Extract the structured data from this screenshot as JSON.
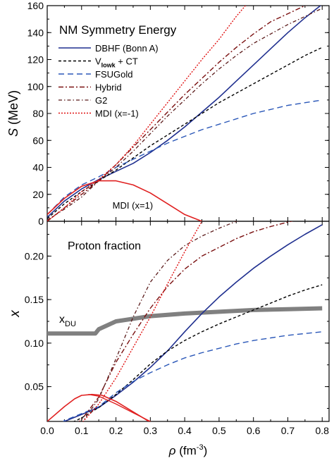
{
  "chart_data": [
    {
      "type": "line",
      "title": "NM Symmetry Energy",
      "ylabel_var": "S",
      "ylabel_unit": "(MeV)",
      "xlim": [
        0.0,
        0.82
      ],
      "ylim": [
        0,
        160
      ],
      "xticks": [
        "0.0",
        "0.1",
        "0.2",
        "0.3",
        "0.4",
        "0.5",
        "0.6",
        "0.7",
        "0.8"
      ],
      "xtick_values": [
        0.0,
        0.1,
        0.2,
        0.3,
        0.4,
        0.5,
        0.6,
        0.7,
        0.8
      ],
      "yticks": [
        "0",
        "20",
        "40",
        "60",
        "80",
        "100",
        "120",
        "140",
        "160"
      ],
      "ytick_values": [
        0,
        20,
        40,
        60,
        80,
        100,
        120,
        140,
        160
      ],
      "legend_position": "top-left",
      "annotations": [
        {
          "text": "MDI (x=1)",
          "x": 0.19,
          "y": 12
        }
      ],
      "series": [
        {
          "name": "DBHF (Bonn A)",
          "color": "#1f2f8f",
          "dash": "solid",
          "width": 1.6,
          "x": [
            0.0,
            0.05,
            0.1,
            0.15,
            0.2,
            0.25,
            0.3,
            0.35,
            0.4,
            0.45,
            0.5,
            0.55,
            0.6,
            0.65,
            0.7,
            0.75,
            0.8
          ],
          "y": [
            3,
            15,
            24,
            31,
            37,
            43,
            51,
            60,
            70,
            81,
            92,
            104,
            116,
            128,
            140,
            151,
            161
          ]
        },
        {
          "name": "Vlowk + CT",
          "name_main": "V",
          "name_sub": "lowk",
          "name_rest": " + CT",
          "color": "#000000",
          "dash": "4,3",
          "width": 1.4,
          "x": [
            0.0,
            0.05,
            0.1,
            0.15,
            0.2,
            0.25,
            0.3,
            0.35,
            0.4,
            0.45,
            0.5,
            0.55,
            0.6,
            0.65,
            0.7,
            0.75,
            0.8
          ],
          "y": [
            2,
            13,
            22,
            30,
            38,
            47,
            56,
            64,
            72,
            80,
            88,
            95,
            102,
            109,
            116,
            123,
            129
          ]
        },
        {
          "name": "FSUGold",
          "color": "#2a57b8",
          "dash": "8,5",
          "width": 1.4,
          "x": [
            0.0,
            0.05,
            0.1,
            0.15,
            0.2,
            0.25,
            0.3,
            0.35,
            0.4,
            0.45,
            0.5,
            0.55,
            0.6,
            0.65,
            0.7,
            0.75,
            0.8
          ],
          "y": [
            5,
            18,
            27,
            33,
            40,
            46,
            52,
            58,
            63,
            68,
            72,
            76,
            80,
            83,
            86,
            88,
            90
          ]
        },
        {
          "name": "Hybrid",
          "color": "#7a1010",
          "dash": "7,3,2,3",
          "width": 1.4,
          "x": [
            0.0,
            0.05,
            0.1,
            0.15,
            0.2,
            0.25,
            0.3,
            0.35,
            0.4,
            0.45,
            0.5,
            0.55,
            0.6,
            0.65,
            0.7,
            0.75,
            0.8
          ],
          "y": [
            0,
            10,
            20,
            30,
            42,
            55,
            68,
            81,
            94,
            106,
            118,
            129,
            139,
            148,
            154,
            160,
            164
          ]
        },
        {
          "name": "G2",
          "color": "#5a1a1a",
          "dash": "5,3,1.5,3",
          "width": 1.3,
          "x": [
            0.0,
            0.05,
            0.1,
            0.15,
            0.2,
            0.25,
            0.3,
            0.35,
            0.4,
            0.45,
            0.5,
            0.55,
            0.6,
            0.65,
            0.7,
            0.75,
            0.8
          ],
          "y": [
            1,
            9,
            18,
            30,
            40,
            52,
            65,
            78,
            90,
            102,
            113,
            123,
            132,
            139,
            146,
            152,
            158
          ]
        },
        {
          "name": "MDI (x=-1)",
          "color": "#e01010",
          "dash": "2,2",
          "width": 1.4,
          "x": [
            0.0,
            0.05,
            0.1,
            0.15,
            0.2,
            0.25,
            0.3,
            0.35,
            0.4,
            0.45,
            0.5,
            0.55,
            0.58
          ],
          "y": [
            0,
            10,
            22,
            31,
            42,
            56,
            72,
            88,
            104,
            120,
            135,
            152,
            161
          ]
        },
        {
          "name": "MDI (x=1)",
          "color": "#e02020",
          "dash": "solid",
          "width": 1.6,
          "inLegend": false,
          "x": [
            0.0,
            0.05,
            0.1,
            0.15,
            0.2,
            0.25,
            0.3,
            0.35,
            0.4,
            0.45
          ],
          "y": [
            5,
            17,
            26,
            30,
            30,
            27,
            21,
            13,
            5,
            0
          ]
        }
      ]
    },
    {
      "type": "line",
      "title": "Proton fraction",
      "ylabel": "x",
      "xlabel_var": "ρ",
      "xlabel_unit": "(fm",
      "xlabel_sup": "-3",
      "xlabel_close": ")",
      "xlim": [
        0.0,
        0.82
      ],
      "ylim": [
        0.01,
        0.24
      ],
      "xticks": [
        "0.0",
        "0.1",
        "0.2",
        "0.3",
        "0.4",
        "0.5",
        "0.6",
        "0.7",
        "0.8"
      ],
      "xtick_values": [
        0.0,
        0.1,
        0.2,
        0.3,
        0.4,
        0.5,
        0.6,
        0.7,
        0.8
      ],
      "yticks": [
        "0.05",
        "0.10",
        "0.15",
        "0.20"
      ],
      "ytick_values": [
        0.05,
        0.1,
        0.15,
        0.2
      ],
      "annotations": [
        {
          "text": "x",
          "sub": "DU",
          "x": 0.08,
          "y": 0.12
        }
      ],
      "series": [
        {
          "name": "xDU",
          "color": "#808080",
          "dash": "solid",
          "width": 6,
          "x": [
            0.0,
            0.14,
            0.15,
            0.2,
            0.3,
            0.4,
            0.5,
            0.6,
            0.7,
            0.8
          ],
          "y": [
            0.111,
            0.111,
            0.116,
            0.125,
            0.131,
            0.134,
            0.136,
            0.138,
            0.139,
            0.14
          ]
        },
        {
          "name": "DBHF (Bonn A)",
          "color": "#1f2f8f",
          "dash": "solid",
          "width": 1.6,
          "x": [
            0.03,
            0.05,
            0.1,
            0.15,
            0.2,
            0.25,
            0.3,
            0.35,
            0.4,
            0.45,
            0.5,
            0.55,
            0.6,
            0.65,
            0.7,
            0.75,
            0.8
          ],
          "y": [
            0.0,
            0.01,
            0.018,
            0.026,
            0.04,
            0.055,
            0.072,
            0.091,
            0.113,
            0.134,
            0.153,
            0.17,
            0.186,
            0.2,
            0.213,
            0.225,
            0.236
          ]
        },
        {
          "name": "Vlowk + CT",
          "color": "#000000",
          "dash": "4,3",
          "width": 1.4,
          "x": [
            0.04,
            0.05,
            0.1,
            0.15,
            0.2,
            0.25,
            0.3,
            0.35,
            0.4,
            0.45,
            0.5,
            0.55,
            0.6,
            0.65,
            0.7,
            0.75,
            0.8
          ],
          "y": [
            0.0,
            0.005,
            0.014,
            0.026,
            0.041,
            0.058,
            0.076,
            0.091,
            0.103,
            0.113,
            0.122,
            0.13,
            0.138,
            0.146,
            0.154,
            0.161,
            0.167
          ]
        },
        {
          "name": "FSUGold",
          "color": "#2a57b8",
          "dash": "8,5",
          "width": 1.4,
          "x": [
            0.02,
            0.05,
            0.1,
            0.15,
            0.2,
            0.25,
            0.3,
            0.35,
            0.4,
            0.45,
            0.5,
            0.55,
            0.6,
            0.65,
            0.7,
            0.75,
            0.8
          ],
          "y": [
            0.0,
            0.011,
            0.019,
            0.027,
            0.043,
            0.056,
            0.066,
            0.075,
            0.083,
            0.089,
            0.094,
            0.099,
            0.103,
            0.106,
            0.109,
            0.111,
            0.113
          ]
        },
        {
          "name": "Hybrid",
          "color": "#7a1010",
          "dash": "7,3,2,3",
          "width": 1.4,
          "x": [
            0.06,
            0.1,
            0.15,
            0.2,
            0.25,
            0.3,
            0.35,
            0.4,
            0.45,
            0.5,
            0.55,
            0.6,
            0.65,
            0.7,
            0.75,
            0.8
          ],
          "y": [
            0.0,
            0.012,
            0.038,
            0.078,
            0.11,
            0.14,
            0.165,
            0.185,
            0.2,
            0.21,
            0.22,
            0.228,
            0.234,
            0.239,
            0.244,
            0.248
          ]
        },
        {
          "name": "G2",
          "color": "#5a1a1a",
          "dash": "5,3,1.5,3",
          "width": 1.3,
          "x": [
            0.08,
            0.1,
            0.15,
            0.2,
            0.25,
            0.3,
            0.35,
            0.4,
            0.45,
            0.5,
            0.55,
            0.6,
            0.65,
            0.7,
            0.75,
            0.8
          ],
          "y": [
            0.0,
            0.008,
            0.036,
            0.082,
            0.13,
            0.17,
            0.195,
            0.212,
            0.223,
            0.232,
            0.24,
            0.246,
            0.25,
            0.254,
            0.257,
            0.26
          ]
        },
        {
          "name": "MDI (x=-1)",
          "color": "#e01010",
          "dash": "2,2",
          "width": 1.4,
          "x": [
            0.07,
            0.1,
            0.15,
            0.2,
            0.25,
            0.3,
            0.35,
            0.4,
            0.45,
            0.5
          ],
          "y": [
            0.0,
            0.008,
            0.03,
            0.06,
            0.095,
            0.13,
            0.168,
            0.205,
            0.24,
            0.275
          ]
        },
        {
          "name": "MDI (x=1)",
          "color": "#e02020",
          "dash": "solid",
          "width": 1.6,
          "x": [
            0.0,
            0.05,
            0.08,
            0.1,
            0.13,
            0.16,
            0.2,
            0.25,
            0.3,
            0.32
          ],
          "y": [
            0.01,
            0.027,
            0.036,
            0.04,
            0.041,
            0.04,
            0.033,
            0.021,
            0.009,
            0.003
          ]
        },
        {
          "name": "MDI (x=1) branch",
          "color": "#e02020",
          "dash": "solid",
          "width": 1.4,
          "x": [
            0.12,
            0.15,
            0.2,
            0.25,
            0.3,
            0.32
          ],
          "y": [
            0.041,
            0.039,
            0.03,
            0.02,
            0.01,
            0.004
          ]
        }
      ]
    }
  ]
}
